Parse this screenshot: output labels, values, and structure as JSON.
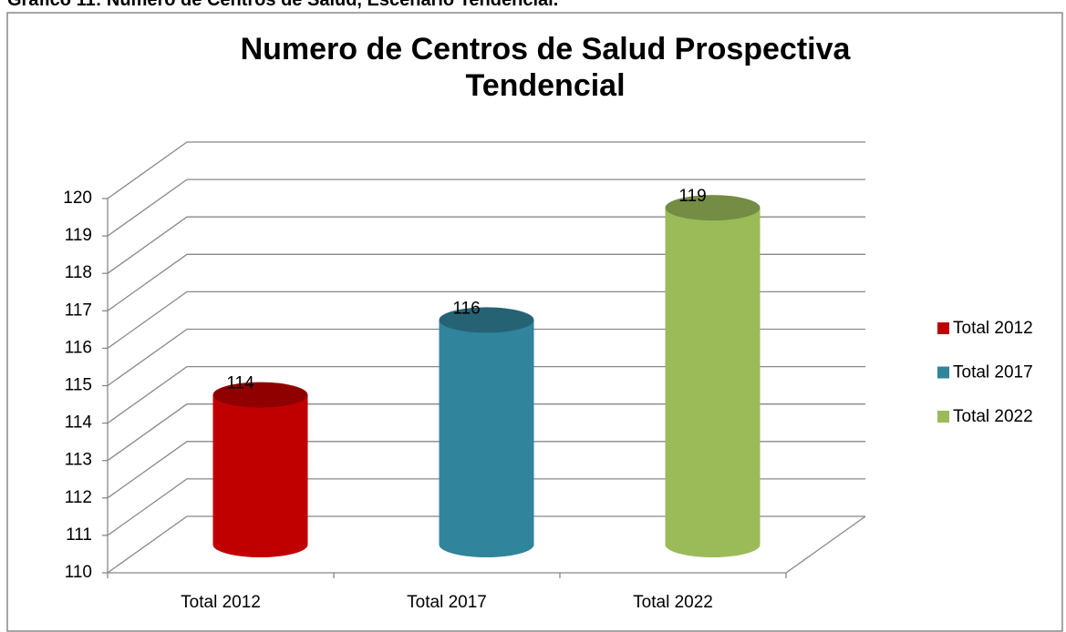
{
  "caption": "Gráfico 11: Número de Centros de Salud, Escenario Tendencial.",
  "chart_data": {
    "type": "cylinder",
    "title": "Numero de Centros de Salud Prospectiva Tendencial",
    "categories": [
      "Total 2012",
      "Total 2017",
      "Total 2022"
    ],
    "values": [
      114,
      116,
      119
    ],
    "colors": [
      "#c00000",
      "#31849b",
      "#9bbb59"
    ],
    "ylim": [
      110,
      120
    ],
    "yticks": [
      110,
      111,
      112,
      113,
      114,
      115,
      116,
      117,
      118,
      119,
      120
    ],
    "grid": true,
    "legend": "right"
  }
}
